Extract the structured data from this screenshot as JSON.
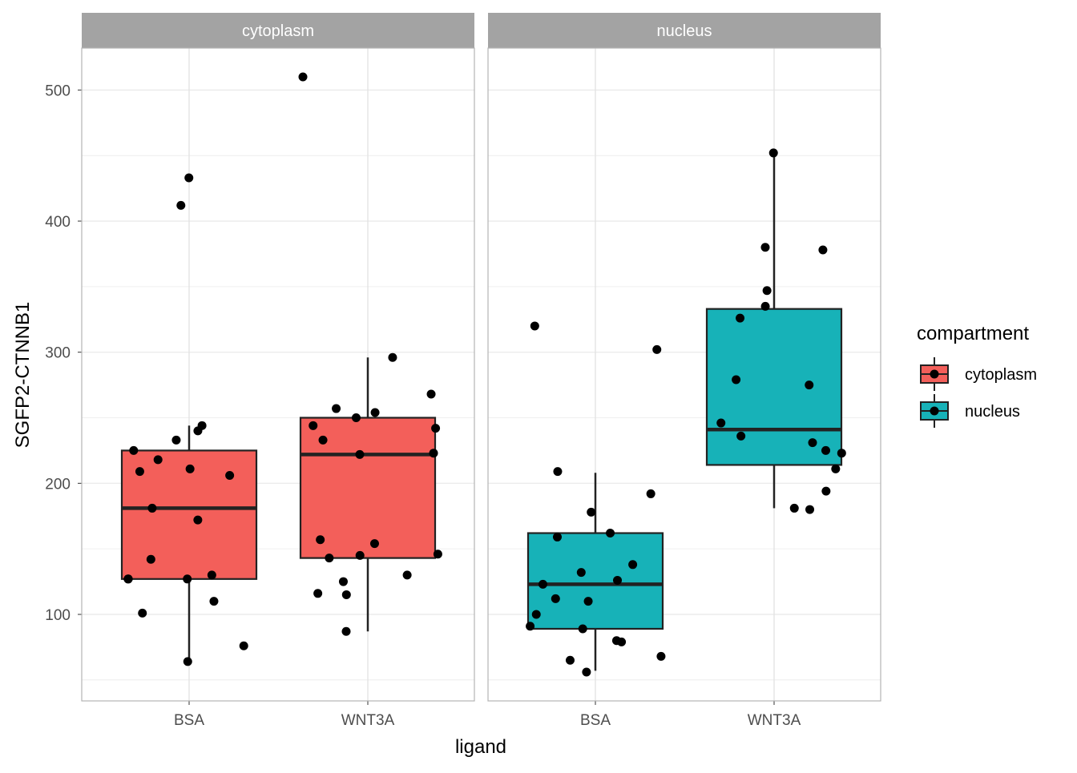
{
  "chart_data": {
    "type": "box",
    "xlabel": "ligand",
    "ylabel": "SGFP2-CTNNB1",
    "ylim": [
      34,
      532
    ],
    "yticks": [
      100,
      200,
      300,
      400,
      500
    ],
    "grid": true,
    "categories": [
      "BSA",
      "WNT3A"
    ],
    "legend": {
      "title": "compartment",
      "placement": "right",
      "entries": [
        "cytoplasm",
        "nucleus"
      ]
    },
    "colors": {
      "cytoplasm": "#F35F5A",
      "nucleus": "#17B2B8"
    },
    "panels": [
      {
        "label": "cytoplasm",
        "groups": [
          {
            "category": "BSA",
            "box": {
              "lower": 64,
              "q1": 127,
              "median": 181,
              "q3": 225,
              "upper": 244
            },
            "points": [
              64,
              240,
              225,
              181,
              412,
              211,
              127,
              76,
              244,
              233,
              218,
              206,
              130,
              127,
              433,
              142,
              110,
              209,
              172,
              127,
              101
            ]
          },
          {
            "category": "WNT3A",
            "box": {
              "lower": 87,
              "q1": 143,
              "median": 222,
              "q3": 250,
              "upper": 296
            },
            "points": [
              510,
              268,
              242,
              244,
              222,
              223,
              233,
              250,
              254,
              296,
              257,
              157,
              146,
              145,
              143,
              154,
              125,
              116,
              130,
              115,
              87
            ]
          }
        ]
      },
      {
        "label": "nucleus",
        "groups": [
          {
            "category": "BSA",
            "box": {
              "lower": 57,
              "q1": 89,
              "median": 123,
              "q3": 162,
              "upper": 208
            },
            "points": [
              320,
              302,
              209,
              192,
              178,
              159,
              162,
              132,
              138,
              126,
              123,
              112,
              110,
              100,
              91,
              89,
              79,
              80,
              68,
              65,
              56
            ]
          },
          {
            "category": "WNT3A",
            "box": {
              "lower": 181,
              "q1": 214,
              "median": 241,
              "q3": 333,
              "upper": 451
            },
            "points": [
              452,
              380,
              378,
              347,
              335,
              326,
              279,
              275,
              246,
              236,
              231,
              225,
              223,
              211,
              194,
              180,
              181
            ]
          }
        ]
      }
    ]
  }
}
